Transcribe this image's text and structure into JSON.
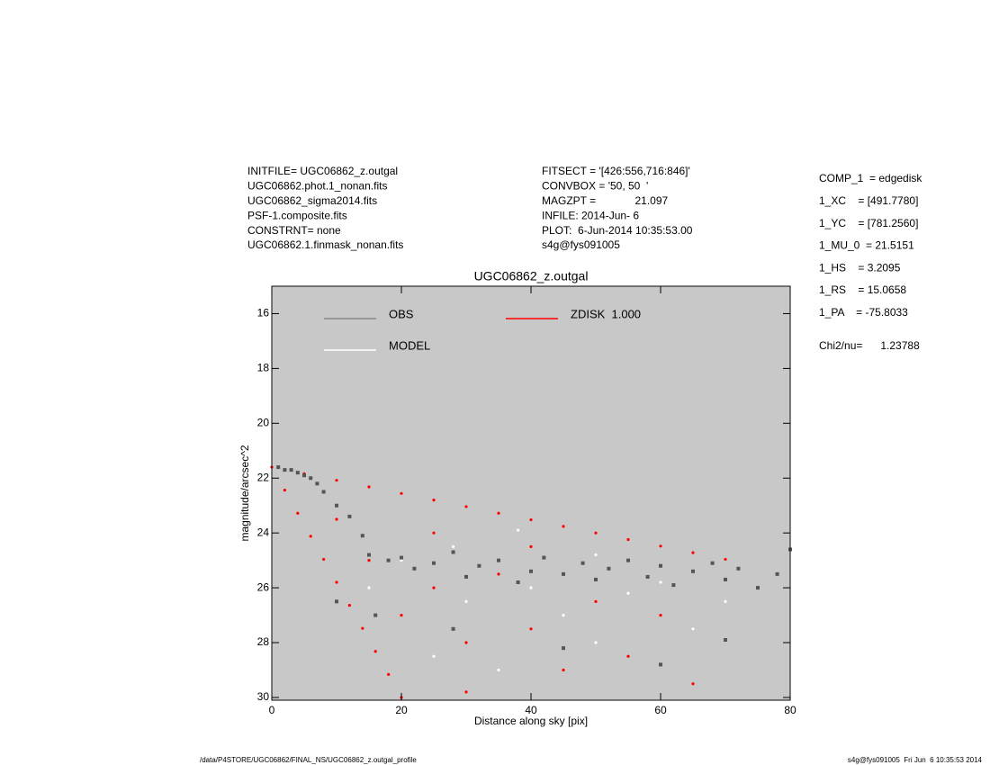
{
  "header_left": [
    "INITFILE= UGC06862_z.outgal",
    "UGC06862.phot.1_nonan.fits",
    "UGC06862_sigma2014.fits",
    "PSF-1.composite.fits",
    "CONSTRNT= none",
    "UGC06862.1.finmask_nonan.fits"
  ],
  "header_mid": [
    "FITSECT = '[426:556,716:846]'",
    "CONVBOX = '50, 50  '",
    "MAGZPT =             21.097",
    "INFILE: 2014-Jun- 6",
    "PLOT:  6-Jun-2014 10:35:53.00",
    "s4g@fys091005"
  ],
  "params": [
    "COMP_1  = edgedisk",
    "1_XC    = [491.7780]",
    "1_YC    = [781.2560]",
    "1_MU_0  = 21.5151",
    "1_HS    = 3.2095",
    "1_RS    = 15.0658",
    "1_PA    = -75.8033",
    "Chi2/nu=      1.23788"
  ],
  "footer_left": "/data/P4STORE/UGC06862/FINAL_NS/UGC06862_z.outgal_profile",
  "footer_right": "s4g@fys091005  Fri Jun  6 10:35:53 2014",
  "chart_data": {
    "type": "scatter",
    "title": "UGC06862_z.outgal",
    "x_label": "Distance along sky [pix]",
    "y_label": "magnitude/arcsec^2",
    "xlim": [
      0,
      80
    ],
    "ylim": [
      30.1,
      15
    ],
    "xticks": [
      0,
      20,
      40,
      60,
      80
    ],
    "yticks": [
      16,
      18,
      20,
      22,
      24,
      26,
      28,
      30
    ],
    "background": "#c8c8c8",
    "series": [
      {
        "name": "ZDISK  1.000",
        "color": "#ff0000",
        "x": [
          0,
          5,
          10,
          15,
          20,
          25,
          30,
          35,
          40,
          45,
          50,
          55,
          60,
          65,
          70,
          2,
          4,
          6,
          8,
          10,
          12,
          14,
          16,
          18,
          20,
          10,
          15,
          20,
          25,
          30,
          35,
          40,
          45,
          50,
          55,
          60,
          65,
          25,
          40,
          30
        ],
        "values": [
          21.6,
          21.84,
          22.08,
          22.32,
          22.56,
          22.8,
          23.04,
          23.28,
          23.52,
          23.76,
          24.0,
          24.24,
          24.48,
          24.72,
          24.96,
          22.44,
          23.28,
          24.12,
          24.96,
          25.8,
          26.64,
          27.48,
          28.32,
          29.16,
          30.0,
          23.5,
          25,
          27,
          26,
          28,
          25.5,
          27.5,
          29,
          26.5,
          28.5,
          27,
          29.5,
          24,
          24.5,
          29.8
        ]
      },
      {
        "name": "MODEL",
        "color": "#ffffff",
        "x": [
          20,
          30,
          40,
          50,
          60,
          35,
          45,
          55,
          25,
          65,
          70,
          38,
          15,
          28,
          50
        ],
        "values": [
          25,
          26.5,
          26,
          28,
          25.8,
          29,
          27,
          26.2,
          28.5,
          27.5,
          26.5,
          23.9,
          26,
          24.5,
          24.8
        ]
      },
      {
        "name": "OBS",
        "color": "#555555",
        "x": [
          1,
          2,
          3,
          4,
          5,
          6,
          7,
          8,
          10,
          12,
          14,
          15,
          18,
          20,
          22,
          25,
          28,
          30,
          32,
          35,
          38,
          40,
          42,
          45,
          48,
          50,
          52,
          55,
          58,
          60,
          62,
          65,
          68,
          70,
          72,
          75,
          78,
          80,
          10,
          16,
          28,
          45,
          60,
          70
        ],
        "values": [
          21.6,
          21.7,
          21.7,
          21.8,
          21.9,
          22.0,
          22.2,
          22.5,
          23.0,
          23.4,
          24.1,
          24.8,
          25.0,
          24.9,
          25.3,
          25.1,
          24.7,
          25.6,
          25.2,
          25.0,
          25.8,
          25.4,
          24.9,
          25.5,
          25.1,
          25.7,
          25.3,
          25.0,
          25.6,
          25.2,
          25.9,
          25.4,
          25.1,
          25.7,
          25.3,
          26.0,
          25.5,
          24.6,
          26.5,
          27.0,
          27.5,
          28.2,
          28.8,
          27.9
        ]
      }
    ]
  }
}
